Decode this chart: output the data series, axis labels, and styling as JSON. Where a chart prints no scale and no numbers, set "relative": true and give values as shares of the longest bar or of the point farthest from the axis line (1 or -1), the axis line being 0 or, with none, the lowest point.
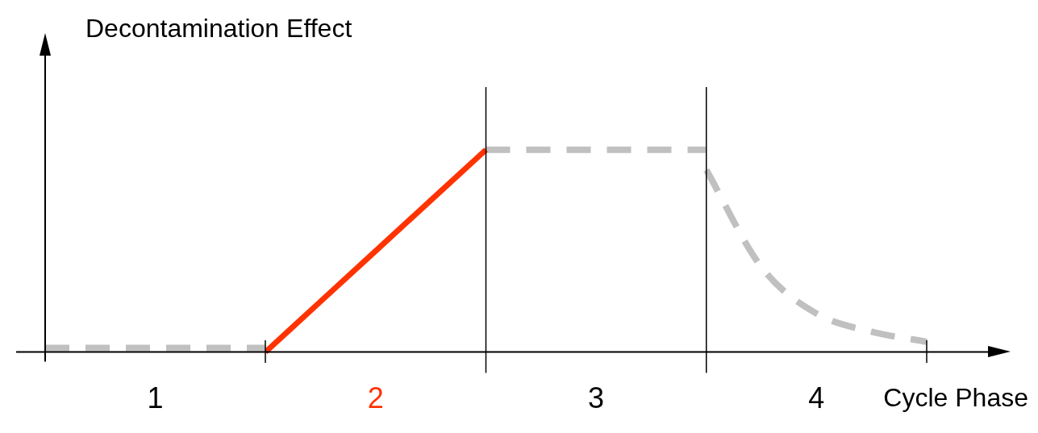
{
  "chart_data": {
    "type": "line",
    "ylabel": "Decontamination Effect",
    "xlabel": "Cycle Phase",
    "relative": true,
    "marker": "none",
    "categories": [
      null,
      null,
      "1",
      null,
      null,
      null,
      "2",
      null,
      null,
      null,
      "3",
      null,
      null,
      null,
      "4",
      null,
      null
    ],
    "series": [
      {
        "color": "#c0c0c0",
        "line_style": "dashed",
        "values": [
          0.02,
          0.02,
          0.02,
          0.02,
          0.02,
          null,
          null,
          null,
          null,
          null,
          null,
          null,
          null,
          null,
          null,
          null,
          null
        ]
      },
      {
        "color": "#ff3300",
        "line_style": "solid",
        "values": [
          null,
          null,
          null,
          null,
          0,
          0.25,
          0.5,
          0.75,
          1,
          null,
          null,
          null,
          null,
          null,
          null,
          null,
          null
        ]
      },
      {
        "color": "#c0c0c0",
        "line_style": "dashed",
        "values": [
          null,
          null,
          null,
          null,
          null,
          null,
          null,
          null,
          1,
          1,
          1,
          1,
          1,
          null,
          null,
          null,
          null
        ]
      },
      {
        "color": "#c0c0c0",
        "line_style": "dashed",
        "values": [
          null,
          null,
          null,
          null,
          null,
          null,
          null,
          null,
          null,
          null,
          null,
          null,
          0.9,
          0.42,
          0.19,
          0.1,
          0.05
        ]
      }
    ]
  }
}
